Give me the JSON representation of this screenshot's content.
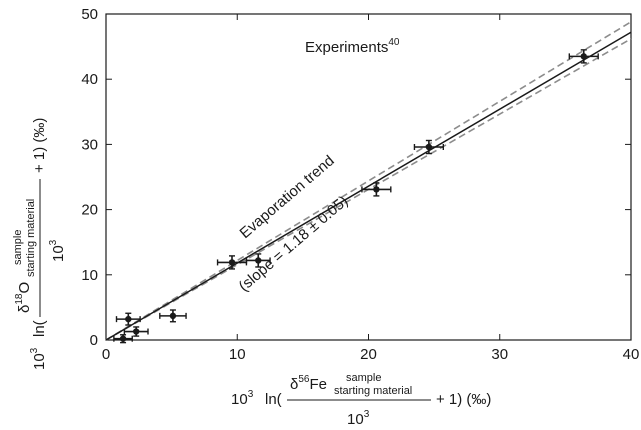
{
  "chart_data": {
    "type": "scatter",
    "xlim": [
      0,
      40
    ],
    "ylim": [
      0,
      50
    ],
    "x_ticks": [
      "0",
      "10",
      "20",
      "30",
      "40"
    ],
    "y_ticks": [
      "0",
      "10",
      "20",
      "30",
      "40",
      "50"
    ],
    "grid": false,
    "points": [
      {
        "x": 1.3,
        "y": 0.2,
        "xerr": 0.7,
        "yerr": 0.6
      },
      {
        "x": 1.7,
        "y": 3.2,
        "xerr": 0.9,
        "yerr": 0.9
      },
      {
        "x": 2.3,
        "y": 1.3,
        "xerr": 0.9,
        "yerr": 0.7
      },
      {
        "x": 5.1,
        "y": 3.7,
        "xerr": 1.0,
        "yerr": 0.9
      },
      {
        "x": 9.6,
        "y": 11.9,
        "xerr": 1.1,
        "yerr": 1.0
      },
      {
        "x": 11.6,
        "y": 12.2,
        "xerr": 0.9,
        "yerr": 1.0
      },
      {
        "x": 20.6,
        "y": 23.1,
        "xerr": 1.1,
        "yerr": 1.0
      },
      {
        "x": 24.6,
        "y": 29.6,
        "xerr": 1.1,
        "yerr": 1.0
      },
      {
        "x": 36.4,
        "y": 43.5,
        "xerr": 1.1,
        "yerr": 1.0
      }
    ],
    "fit_line": {
      "slope": 1.18,
      "intercept": 0.0,
      "x_range": [
        0,
        40
      ]
    },
    "confidence_band": {
      "slope_low": 1.155,
      "slope_high": 1.22,
      "x_range": [
        0,
        40
      ]
    },
    "annotations": {
      "experiments": "Experiments",
      "experiments_sup": "40",
      "trend": "Evaporation trend",
      "slope": "(slope = 1.18 ± 0.05)"
    },
    "xlabel": {
      "prefix": "10",
      "prefix_sup": "3",
      "ln": "ln(",
      "delta": "δ",
      "isotope_sup": "56",
      "element": "Fe",
      "frac_sup": "sample",
      "frac_sub": "starting material",
      "denominator": "10",
      "denominator_sup": "3",
      "suffix": "+ 1) (‰)"
    },
    "ylabel": {
      "prefix": "10",
      "prefix_sup": "3",
      "ln": "ln(",
      "delta": "δ",
      "isotope_sup": "18",
      "element": "O",
      "frac_sup": "sample",
      "frac_sub": "starting material",
      "denominator": "10",
      "denominator_sup": "3",
      "suffix": "+ 1) (‰)"
    },
    "colors": {
      "data": "#1a1a1a",
      "fit": "#1a1a1a",
      "band": "#8c8c8c",
      "axis": "#1a1a1a"
    }
  }
}
